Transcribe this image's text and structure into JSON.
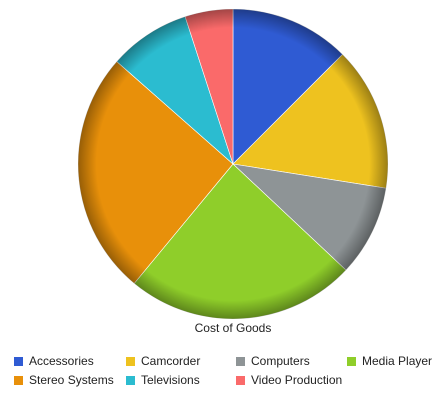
{
  "chart_data": {
    "type": "pie",
    "title": "",
    "xlabel": "Cost of Goods",
    "categories": [
      "Accessories",
      "Camcorder",
      "Computers",
      "Media Player",
      "Stereo Systems",
      "Televisions",
      "Video Production"
    ],
    "values": [
      12.5,
      15.0,
      9.5,
      24.0,
      25.5,
      8.5,
      5.0
    ],
    "colors": [
      "#2f5bd3",
      "#eec21f",
      "#8e9496",
      "#8fce2a",
      "#e8900a",
      "#2bbcd0",
      "#fa6a6a"
    ],
    "legend_position": "bottom",
    "start_angle_deg": 0,
    "direction": "clockwise"
  }
}
